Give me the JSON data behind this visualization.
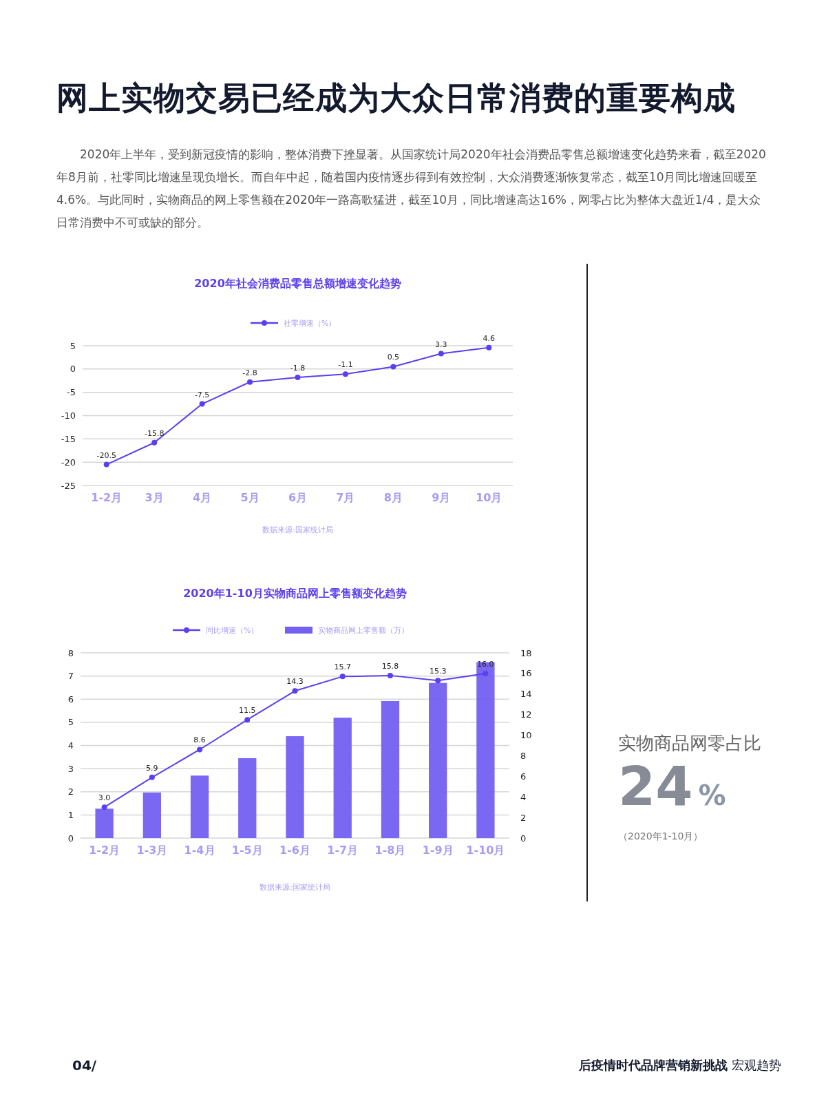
{
  "chart_data": [
    {
      "type": "other",
      "title": "网上实物交易已经成为大众日常消费的重要构成",
      "annotations": [
        "2020年上半年，受到新冠疫情的影响，整体消费下挫显著。从国家统计局2020年社会消费品零售总额增速变化趋势来看，截至2020年8月前，社零同比增速呈现负增长。而自年中起，随着国内疫情逐步得到有效控制，大众消费逐渐恢复常态，截至10月同比增速回暖至4.6%。与此同时，实物商品的网上零售额在2020年一路高歌猛进，截至10月，同比增速高达16%，网零占比为整体大盘近1/4，是大众日常消费中不可或缺的部分。"
      ]
    },
    {
      "type": "line",
      "title": "2020年社会消费品零售总额增速变化趋势",
      "categories": [
        "1-2月",
        "3月",
        "4月",
        "5月",
        "6月",
        "7月",
        "8月",
        "9月",
        "10月"
      ],
      "series": [
        {
          "name": "社零增速（%）",
          "color": "#5b3ff0",
          "values": [
            -20.5,
            -15.8,
            -7.5,
            -2.8,
            -1.8,
            -1.1,
            0.5,
            3.3,
            4.6
          ]
        }
      ],
      "ylim": [
        -25,
        5
      ],
      "yticks": [
        -25,
        -20,
        -15,
        -10,
        -5,
        0,
        5
      ],
      "grid": "y",
      "legend": "top",
      "marker": "circle",
      "data_labels": true,
      "annotations": [
        "数据来源:国家统计局"
      ]
    },
    {
      "type": "bar",
      "title": "2020年1-10月实物商品网上零售额变化趋势",
      "categories": [
        "1-2月",
        "1-3月",
        "1-4月",
        "1-5月",
        "1-6月",
        "1-7月",
        "1-8月",
        "1-9月",
        "1-10月"
      ],
      "series": [
        {
          "name": "同比增速（%）",
          "type": "line",
          "axis": "y2",
          "color": "#5b3ff0",
          "values": [
            3.0,
            5.9,
            8.6,
            11.5,
            14.3,
            15.7,
            15.8,
            15.3,
            16.0
          ],
          "value_labels": [
            "3.0",
            "5.9",
            "8.6",
            "11.5",
            "14.3",
            "15.7",
            "15.8",
            "15.3",
            "16.0"
          ]
        },
        {
          "name": "实物商品网上零售额（万）",
          "type": "bar",
          "color": "#7360f2",
          "values": [
            1.27,
            1.97,
            2.7,
            3.45,
            4.4,
            5.2,
            5.92,
            6.7,
            7.6
          ]
        }
      ],
      "ylim": [
        0,
        8
      ],
      "yticks": [
        0,
        1,
        2,
        3,
        4,
        5,
        6,
        7,
        8
      ],
      "y2lim": [
        0,
        18
      ],
      "y2ticks": [
        0,
        2,
        4,
        6,
        8,
        10,
        12,
        14,
        16,
        18
      ],
      "grid": "y",
      "legend": "top",
      "marker": "circle",
      "annotations": [
        "数据来源:国家统计局"
      ]
    },
    {
      "type": "other",
      "title": "实物商品网零占比",
      "annotations": [
        "24%",
        "（2020年1-10月）"
      ]
    },
    {
      "type": "other",
      "annotations": [
        "04/",
        "后疫情时代品牌营销新挑战",
        "宏观趋势"
      ]
    }
  ]
}
